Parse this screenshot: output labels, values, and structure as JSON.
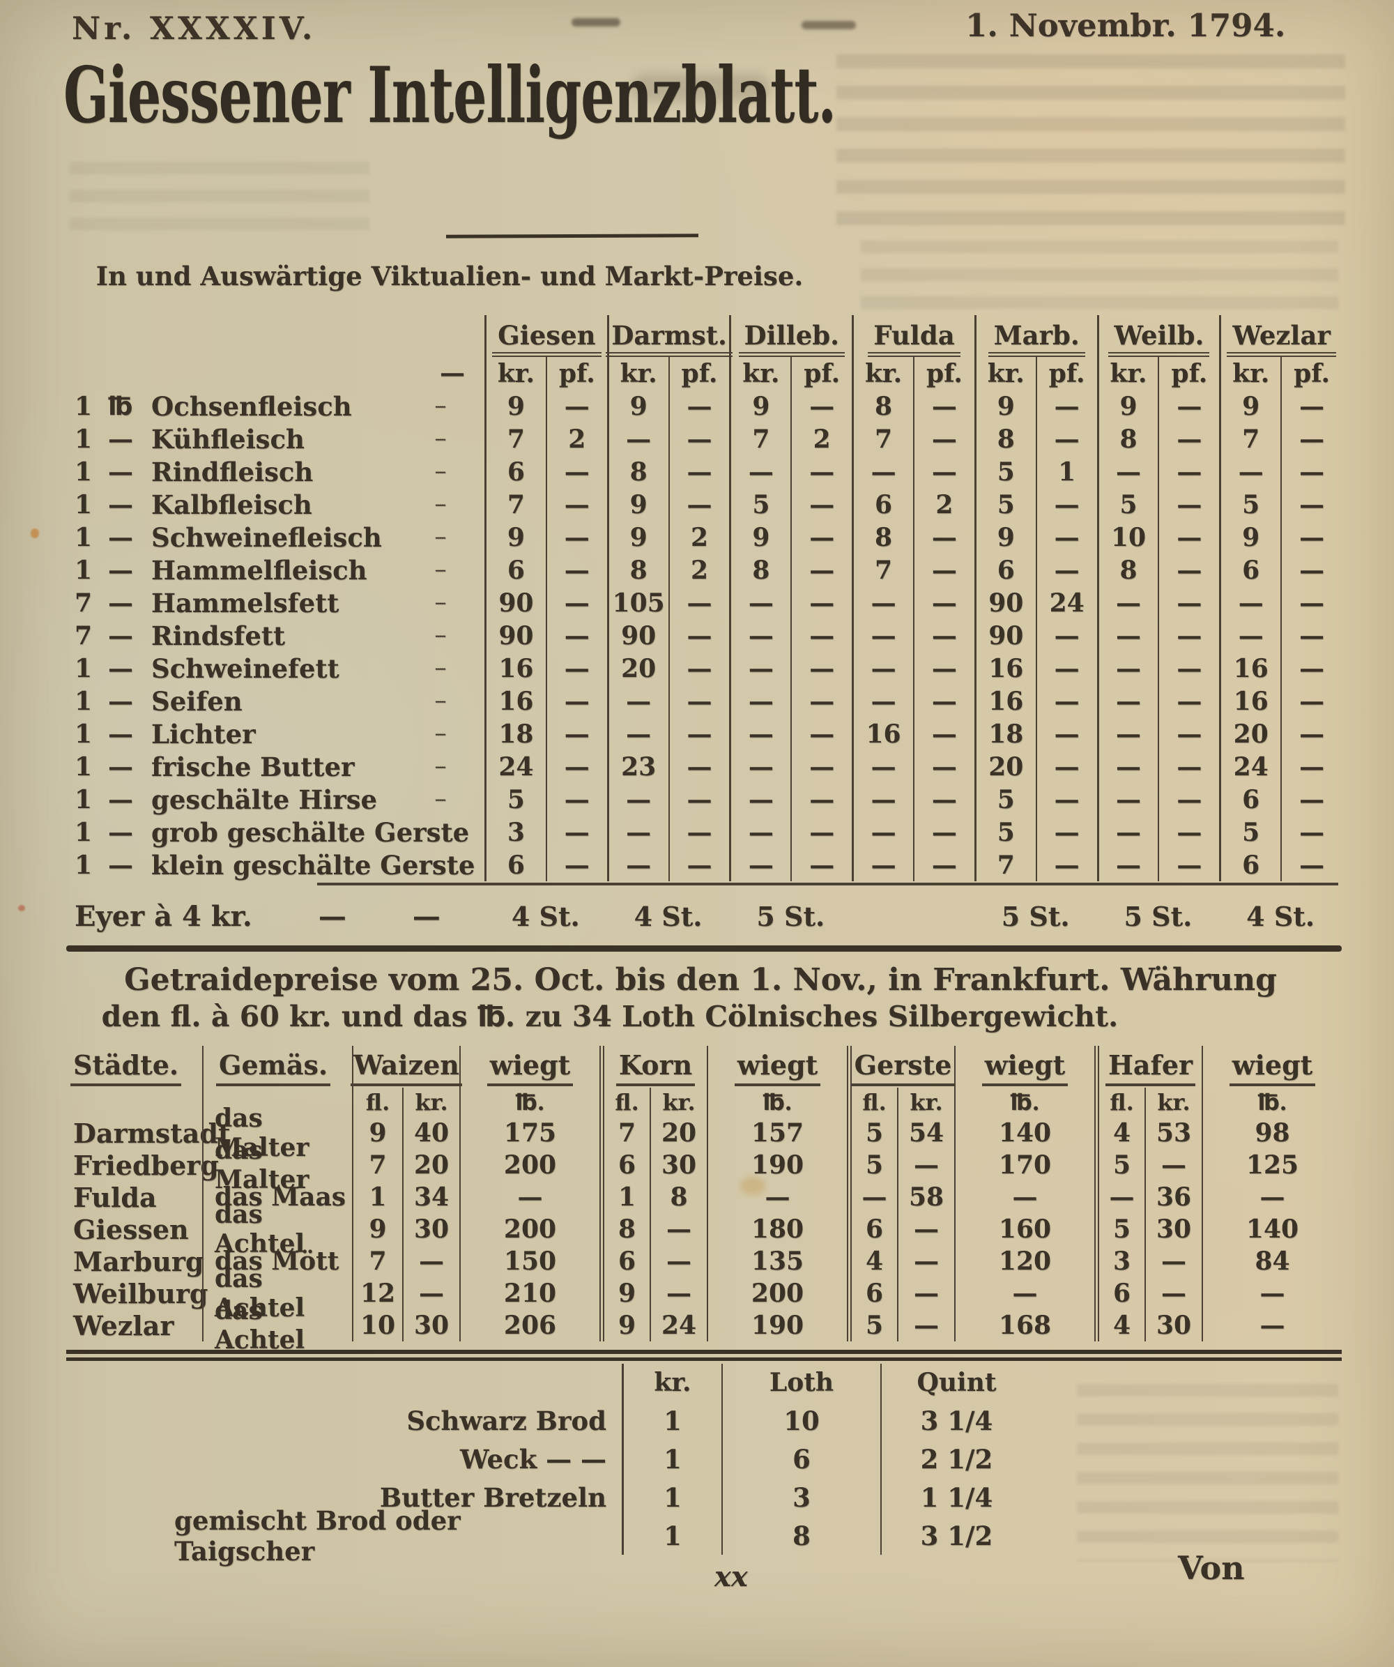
{
  "page": {
    "issue_number": "Nr. XXXXIV.",
    "date": "1. Novembr. 1794.",
    "title": "Giessener Intelligenzblatt.",
    "subtitle": "In und Auswärtige Viktualien- und Markt-Preise.",
    "signature_mark": "xx",
    "catchword": "Von",
    "ink_color": "#3a3127",
    "paper_color": "#d1c6a8"
  },
  "market_table": {
    "city_headers": [
      "Giesen",
      "Darmst.",
      "Dilleb.",
      "Fulda",
      "Marb.",
      "Weilb.",
      "Wezlar"
    ],
    "unit_headers": [
      "kr.",
      "pf."
    ],
    "label_dash": "—",
    "rows": [
      {
        "qty": "1",
        "unit": "℔",
        "item": "Ochsenfleisch",
        "values": [
          "9",
          "—",
          "9",
          "—",
          "9",
          "—",
          "8",
          "—",
          "9",
          "—",
          "9",
          "—",
          "9",
          "—"
        ]
      },
      {
        "qty": "1",
        "unit": "—",
        "item": "Kühfleisch",
        "values": [
          "7",
          "2",
          "—",
          "—",
          "7",
          "2",
          "7",
          "—",
          "8",
          "—",
          "8",
          "—",
          "7",
          "—"
        ]
      },
      {
        "qty": "1",
        "unit": "—",
        "item": "Rindfleisch",
        "values": [
          "6",
          "—",
          "8",
          "—",
          "—",
          "—",
          "—",
          "—",
          "5",
          "1",
          "—",
          "—",
          "—",
          "—"
        ]
      },
      {
        "qty": "1",
        "unit": "—",
        "item": "Kalbfleisch",
        "values": [
          "7",
          "—",
          "9",
          "—",
          "5",
          "—",
          "6",
          "2",
          "5",
          "—",
          "5",
          "—",
          "5",
          "—"
        ]
      },
      {
        "qty": "1",
        "unit": "—",
        "item": "Schweinefleisch",
        "values": [
          "9",
          "—",
          "9",
          "2",
          "9",
          "—",
          "8",
          "—",
          "9",
          "—",
          "10",
          "—",
          "9",
          "—"
        ]
      },
      {
        "qty": "1",
        "unit": "—",
        "item": "Hammelfleisch",
        "values": [
          "6",
          "—",
          "8",
          "2",
          "8",
          "—",
          "7",
          "—",
          "6",
          "—",
          "8",
          "—",
          "6",
          "—"
        ]
      },
      {
        "qty": "7",
        "unit": "—",
        "item": "Hammelsfett",
        "values": [
          "90",
          "—",
          "105",
          "—",
          "—",
          "—",
          "—",
          "—",
          "90",
          "24",
          "—",
          "—",
          "—",
          "—"
        ]
      },
      {
        "qty": "7",
        "unit": "—",
        "item": "Rindsfett",
        "values": [
          "90",
          "—",
          "90",
          "—",
          "—",
          "—",
          "—",
          "—",
          "90",
          "—",
          "—",
          "—",
          "—",
          "—"
        ]
      },
      {
        "qty": "1",
        "unit": "—",
        "item": "Schweinefett",
        "values": [
          "16",
          "—",
          "20",
          "—",
          "—",
          "—",
          "—",
          "—",
          "16",
          "—",
          "—",
          "—",
          "16",
          "—"
        ]
      },
      {
        "qty": "1",
        "unit": "—",
        "item": "Seifen",
        "values": [
          "16",
          "—",
          "—",
          "—",
          "—",
          "—",
          "—",
          "—",
          "16",
          "—",
          "—",
          "—",
          "16",
          "—"
        ]
      },
      {
        "qty": "1",
        "unit": "—",
        "item": "Lichter",
        "values": [
          "18",
          "—",
          "—",
          "—",
          "—",
          "—",
          "16",
          "—",
          "18",
          "—",
          "—",
          "—",
          "20",
          "—"
        ]
      },
      {
        "qty": "1",
        "unit": "—",
        "item": "frische Butter",
        "values": [
          "24",
          "—",
          "23",
          "—",
          "—",
          "—",
          "—",
          "—",
          "20",
          "—",
          "—",
          "—",
          "24",
          "—"
        ]
      },
      {
        "qty": "1",
        "unit": "—",
        "item": "geschälte Hirse",
        "values": [
          "5",
          "—",
          "—",
          "—",
          "—",
          "—",
          "—",
          "—",
          "5",
          "—",
          "—",
          "—",
          "6",
          "—"
        ]
      },
      {
        "qty": "1",
        "unit": "—",
        "item": "grob geschälte Gerste",
        "dash": false,
        "values": [
          "3",
          "—",
          "—",
          "—",
          "—",
          "—",
          "—",
          "—",
          "5",
          "—",
          "—",
          "—",
          "5",
          "—"
        ]
      },
      {
        "qty": "1",
        "unit": "—",
        "item": "klein geschälte Gerste",
        "dash": false,
        "values": [
          "6",
          "—",
          "—",
          "—",
          "—",
          "—",
          "—",
          "—",
          "7",
          "—",
          "—",
          "—",
          "6",
          "—"
        ]
      }
    ],
    "eggs_row": {
      "label": "Eyer à 4 kr.",
      "dash": "—",
      "values": [
        "4 St.",
        "4 St.",
        "5 St.",
        "",
        "5 St.",
        "5 St.",
        "4 St."
      ]
    }
  },
  "grain_section": {
    "heading_line1": "Getraidepreise vom 25. Oct. bis den 1. Nov., in Frankfurt. Währung",
    "heading_line2": "den fl. à 60 kr. und das ℔. zu 34 Loth Cölnisches Silbergewicht.",
    "col_staedte": "Städte.",
    "col_gemaes": "Gemäs.",
    "grains": [
      "Waizen",
      "Korn",
      "Gerste",
      "Hafer"
    ],
    "weight_label": "wiegt",
    "sub_fl": "fl.",
    "sub_kr": "kr.",
    "sub_lb": "℔.",
    "rows": [
      {
        "city": "Darmstadt",
        "measure": "das Malter",
        "values": [
          "9",
          "40",
          "175",
          "7",
          "20",
          "157",
          "5",
          "54",
          "140",
          "4",
          "53",
          "98"
        ]
      },
      {
        "city": "Friedberg",
        "measure": "das Malter",
        "values": [
          "7",
          "20",
          "200",
          "6",
          "30",
          "190",
          "5",
          "—",
          "170",
          "5",
          "—",
          "125"
        ]
      },
      {
        "city": "Fulda",
        "measure": "das Maas",
        "values": [
          "1",
          "34",
          "—",
          "1",
          "8",
          "—",
          "—",
          "58",
          "—",
          "—",
          "36",
          "—"
        ]
      },
      {
        "city": "Giessen",
        "measure": "das Achtel",
        "values": [
          "9",
          "30",
          "200",
          "8",
          "—",
          "180",
          "6",
          "—",
          "160",
          "5",
          "30",
          "140"
        ]
      },
      {
        "city": "Marburg",
        "measure": "das Mött",
        "values": [
          "7",
          "—",
          "150",
          "6",
          "—",
          "135",
          "4",
          "—",
          "120",
          "3",
          "—",
          "84"
        ]
      },
      {
        "city": "Weilburg",
        "measure": "das Achtel",
        "values": [
          "12",
          "—",
          "210",
          "9",
          "—",
          "200",
          "6",
          "—",
          "—",
          "6",
          "—",
          "—"
        ]
      },
      {
        "city": "Wezlar",
        "measure": "das Achtel",
        "values": [
          "10",
          "30",
          "206",
          "9",
          "24",
          "190",
          "5",
          "—",
          "168",
          "4",
          "30",
          "—"
        ]
      }
    ]
  },
  "bread_table": {
    "headers": [
      "kr.",
      "Loth",
      "Quint"
    ],
    "rows": [
      {
        "item": "Schwarz Brod",
        "values": [
          "1",
          "10",
          "3 1/4"
        ]
      },
      {
        "item": "Weck  —  —",
        "values": [
          "1",
          "6",
          "2 1/2"
        ]
      },
      {
        "item": "Butter Bretzeln",
        "values": [
          "1",
          "3",
          "1 1/4"
        ]
      },
      {
        "item": "gemischt Brod oder Taigscher",
        "values": [
          "1",
          "8",
          "3 1/2"
        ]
      }
    ]
  }
}
